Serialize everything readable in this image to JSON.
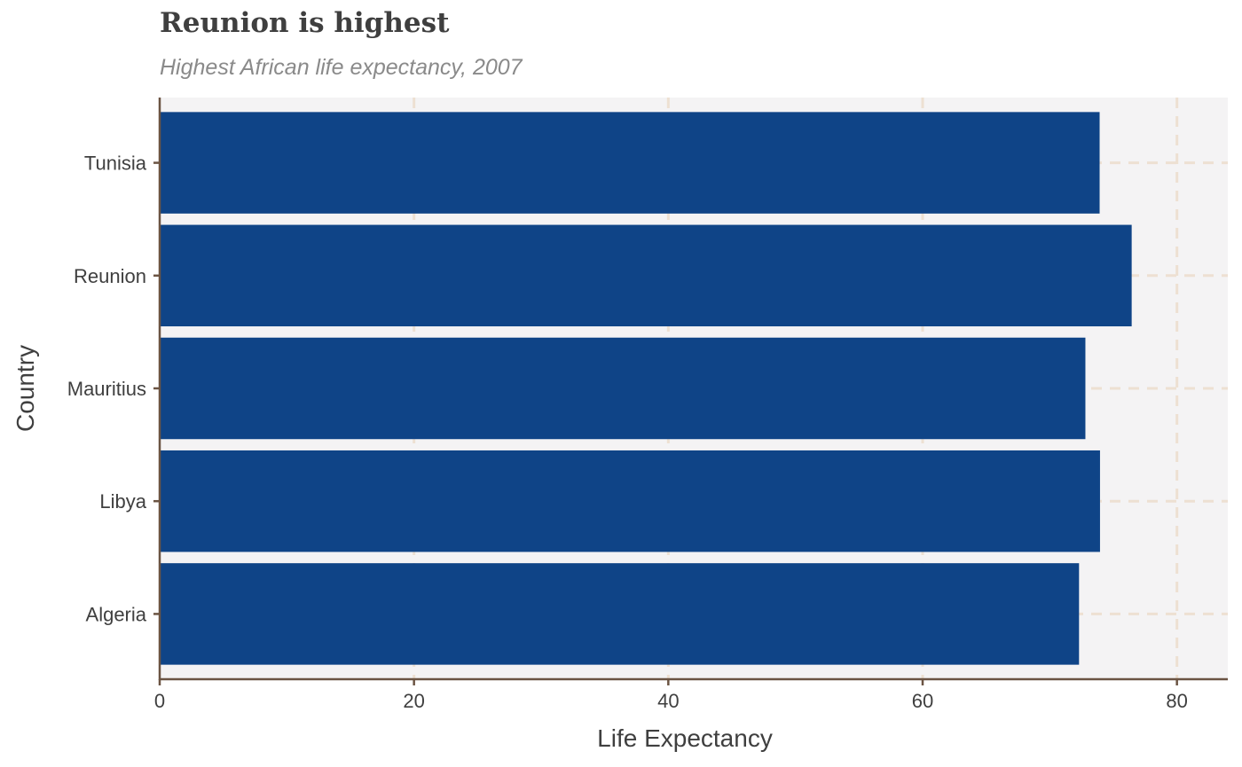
{
  "chart_data": {
    "type": "bar",
    "orientation": "horizontal",
    "title": "Reunion is highest",
    "subtitle": "Highest African life expectancy, 2007",
    "xlabel": "Life Expectancy",
    "ylabel": "Country",
    "categories": [
      "Algeria",
      "Libya",
      "Mauritius",
      "Reunion",
      "Tunisia"
    ],
    "values": [
      72.3,
      73.95,
      72.8,
      76.44,
      73.92
    ],
    "xlim": [
      0,
      84
    ],
    "x_ticks": [
      0,
      20,
      40,
      60,
      80
    ],
    "grid": true,
    "legend": "none",
    "colors": {
      "bar": "#0f4487",
      "panel_background": "#f4f3f4",
      "grid": "#ede0d2",
      "axis_line": "#6b5443",
      "text": "#3f3f3f",
      "subtitle": "#8a8a8a"
    }
  }
}
